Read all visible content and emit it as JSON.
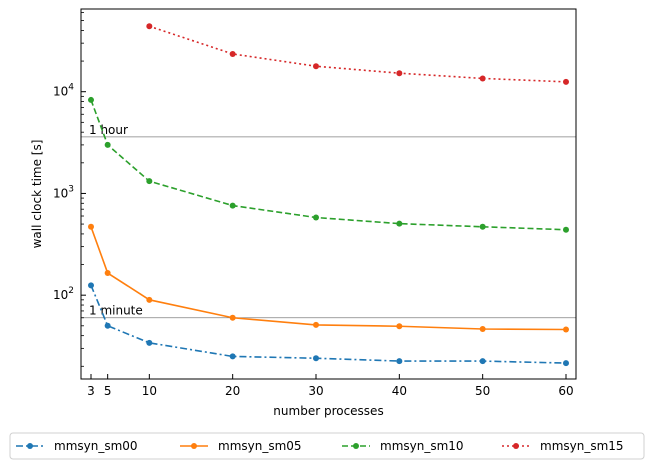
{
  "chart_data": {
    "type": "line",
    "xlabel": "number processes",
    "ylabel": "wall clock time [s]",
    "x_ticks": [
      3,
      5,
      10,
      20,
      30,
      40,
      50,
      60
    ],
    "xlim": [
      1.8,
      61.2
    ],
    "ylim": [
      15,
      65000
    ],
    "y_scale": "log",
    "y_ticks": [
      {
        "value": 100,
        "base": "10",
        "exp": "2"
      },
      {
        "value": 1000,
        "base": "10",
        "exp": "3"
      },
      {
        "value": 10000,
        "base": "10",
        "exp": "4"
      }
    ],
    "grid": false,
    "legend_position": "bottom, outside plot",
    "reference_lines": [
      {
        "label": "1 hour",
        "value": 3600
      },
      {
        "label": "1 minute",
        "value": 60
      }
    ],
    "series": [
      {
        "name": "mmsyn_sm00",
        "color": "#1f77b4",
        "dash": "dashdot",
        "x": [
          3,
          5,
          10,
          20,
          30,
          40,
          50,
          60
        ],
        "values": [
          125,
          50,
          34,
          25,
          24,
          22.5,
          22.5,
          21.5
        ]
      },
      {
        "name": "mmsyn_sm05",
        "color": "#ff7f0e",
        "dash": "solid",
        "x": [
          3,
          5,
          10,
          20,
          30,
          40,
          50,
          60
        ],
        "values": [
          470,
          165,
          90,
          60,
          51,
          49.5,
          46.5,
          46
        ]
      },
      {
        "name": "mmsyn_sm10",
        "color": "#2ca02c",
        "dash": "dashed",
        "x": [
          3,
          5,
          10,
          20,
          30,
          40,
          50,
          60
        ],
        "values": [
          8300,
          3000,
          1320,
          760,
          580,
          505,
          470,
          440
        ]
      },
      {
        "name": "mmsyn_sm15",
        "color": "#d62728",
        "dash": "dotted",
        "x": [
          10,
          20,
          30,
          40,
          50,
          60
        ],
        "values": [
          44000,
          23500,
          17800,
          15200,
          13500,
          12500
        ]
      }
    ]
  }
}
